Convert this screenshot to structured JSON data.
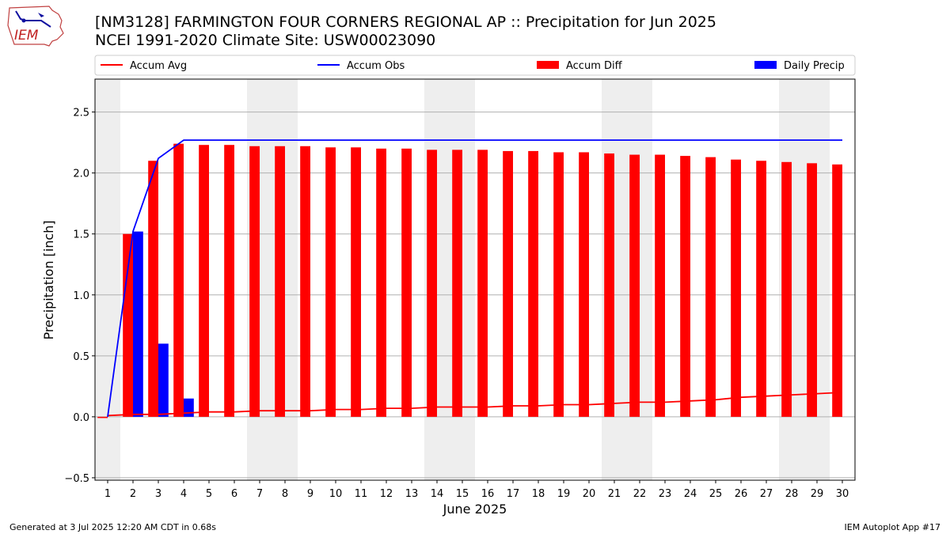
{
  "header": {
    "title_line1": "[NM3128] FARMINGTON FOUR CORNERS REGIONAL AP :: Precipitation for Jun 2025",
    "title_line2": "NCEI 1991-2020 Climate Site: USW00023090",
    "logo_text": "IEM"
  },
  "footer": {
    "generated": "Generated at 3 Jul 2025 12:20 AM CDT in 0.68s",
    "app": "IEM Autoplot App #17"
  },
  "colors": {
    "accum_avg": "#ff0000",
    "accum_obs": "#0000ff",
    "accum_diff": "#ff0000",
    "daily_precip": "#0000ff",
    "weekend_band": "#eeeeee",
    "grid": "#b0b0b0"
  },
  "chart_data": {
    "type": "bar",
    "xlabel": "June 2025",
    "ylabel": "Precipitation [inch]",
    "ylim": [
      -0.52,
      2.77
    ],
    "yticks": [
      -0.5,
      0.0,
      0.5,
      1.0,
      1.5,
      2.0,
      2.5
    ],
    "ytick_labels": [
      "−0.5",
      "0.0",
      "0.5",
      "1.0",
      "1.5",
      "2.0",
      "2.5"
    ],
    "grid": "horizontal",
    "legend": "top, spanning width",
    "x": [
      1,
      2,
      3,
      4,
      5,
      6,
      7,
      8,
      9,
      10,
      11,
      12,
      13,
      14,
      15,
      16,
      17,
      18,
      19,
      20,
      21,
      22,
      23,
      24,
      25,
      26,
      27,
      28,
      29,
      30
    ],
    "shaded_days": [
      1,
      7,
      8,
      14,
      15,
      21,
      22,
      28,
      29
    ],
    "series": [
      {
        "name": "Accum Avg",
        "kind": "line",
        "color": "#ff0000",
        "values": [
          0.01,
          0.02,
          0.02,
          0.03,
          0.04,
          0.04,
          0.05,
          0.05,
          0.05,
          0.06,
          0.06,
          0.07,
          0.07,
          0.08,
          0.08,
          0.08,
          0.09,
          0.09,
          0.1,
          0.1,
          0.11,
          0.12,
          0.12,
          0.13,
          0.14,
          0.16,
          0.17,
          0.18,
          0.19,
          0.2
        ]
      },
      {
        "name": "Accum Obs",
        "kind": "line",
        "color": "#0000ff",
        "values": [
          0.0,
          1.52,
          2.12,
          2.27,
          2.27,
          2.27,
          2.27,
          2.27,
          2.27,
          2.27,
          2.27,
          2.27,
          2.27,
          2.27,
          2.27,
          2.27,
          2.27,
          2.27,
          2.27,
          2.27,
          2.27,
          2.27,
          2.27,
          2.27,
          2.27,
          2.27,
          2.27,
          2.27,
          2.27,
          2.27
        ]
      },
      {
        "name": "Accum Diff",
        "kind": "bar",
        "color": "#ff0000",
        "values": [
          -0.01,
          1.5,
          2.1,
          2.24,
          2.23,
          2.23,
          2.22,
          2.22,
          2.22,
          2.21,
          2.21,
          2.2,
          2.2,
          2.19,
          2.19,
          2.19,
          2.18,
          2.18,
          2.17,
          2.17,
          2.16,
          2.15,
          2.15,
          2.14,
          2.13,
          2.11,
          2.1,
          2.09,
          2.08,
          2.07
        ]
      },
      {
        "name": "Daily Precip",
        "kind": "bar",
        "color": "#0000ff",
        "values": [
          0.0,
          1.52,
          0.6,
          0.15,
          0,
          0,
          0,
          0,
          0,
          0,
          0,
          0,
          0,
          0,
          0,
          0,
          0,
          0,
          0,
          0,
          0,
          0,
          0,
          0,
          0,
          0,
          0,
          0,
          0,
          0
        ]
      }
    ]
  }
}
